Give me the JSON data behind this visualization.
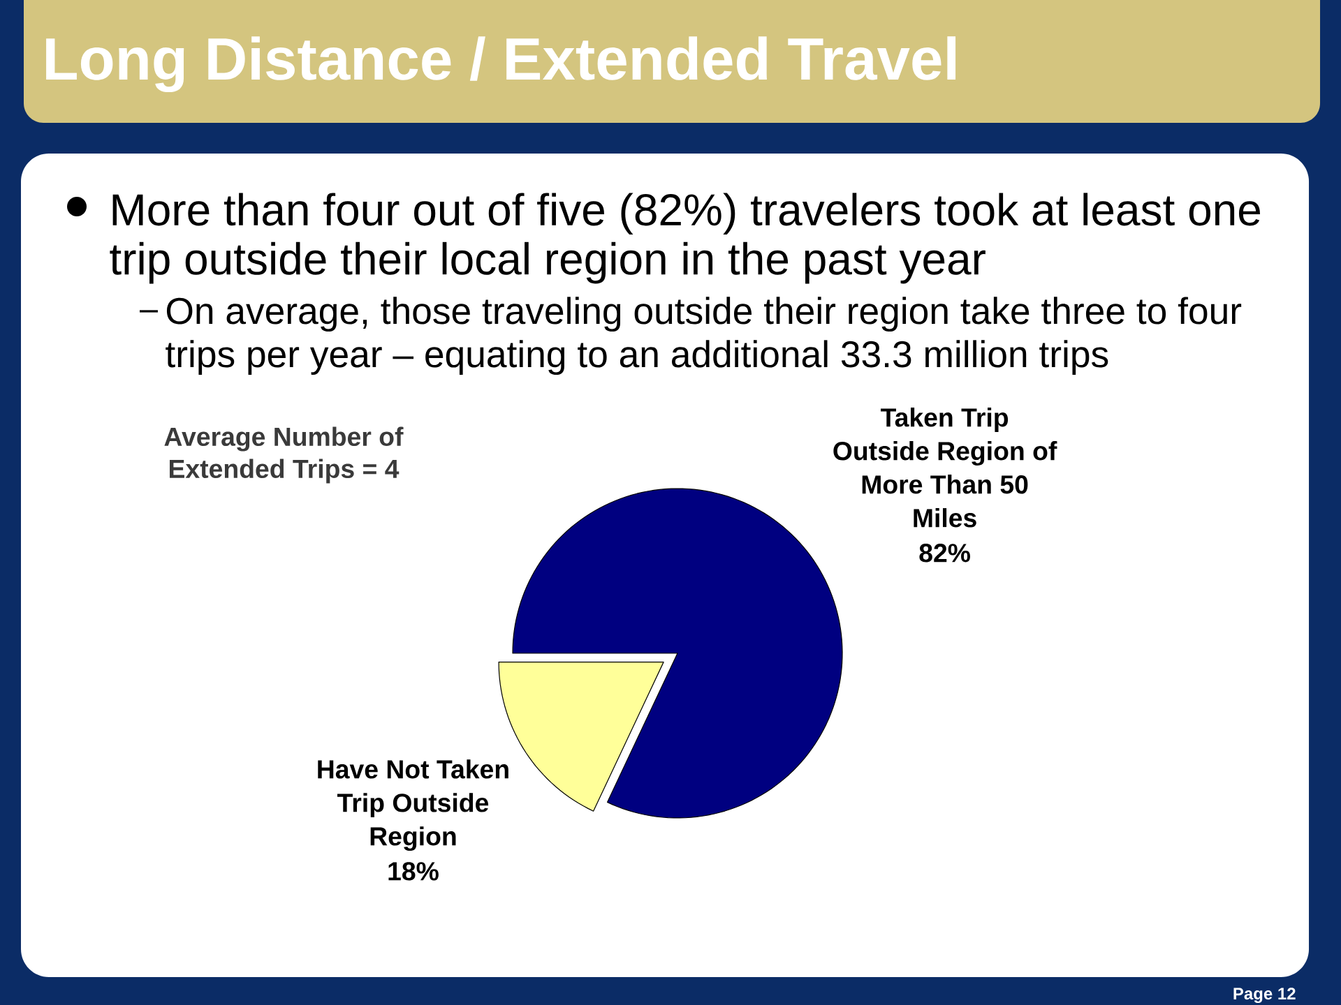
{
  "chart_data": {
    "type": "pie",
    "title": "Long Distance / Extended Travel",
    "categories": [
      "Taken Trip Outside Region of More Than 50 Miles",
      "Have Not Taken Trip Outside Region"
    ],
    "values": [
      82,
      18
    ],
    "colors": [
      "#000080",
      "#ffff99"
    ],
    "value_labels": [
      "82%",
      "18%"
    ],
    "annotations": [
      "More than four out of five (82%) travelers took at least one trip outside their local region in the past year",
      "On average, those traveling outside their region take three to four trips per year – equating to an additional 33.3 million trips",
      "Average Number of Extended Trips = 4",
      "Page 12"
    ]
  }
}
